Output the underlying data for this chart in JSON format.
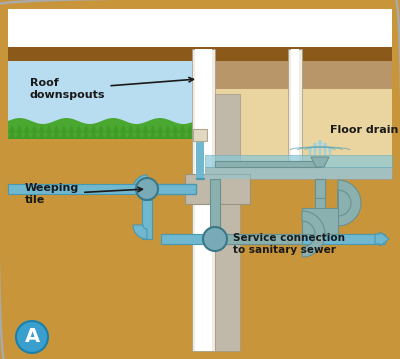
{
  "bg_outer": "#c8953a",
  "sky_color": "#b8ddf0",
  "grass_color": "#4aa830",
  "grass_dark": "#3a9020",
  "soil_color": "#c8953a",
  "soil_light": "#d4a855",
  "interior_color": "#ead5a0",
  "interior_dark": "#c8b888",
  "wall_white": "#f0ece0",
  "wall_gray": "#c0b8a8",
  "wall_border": "#a09888",
  "roof_brown": "#8b5a1a",
  "roof_tan": "#b8966a",
  "pipe_gray": "#8ab0b0",
  "pipe_gray_dark": "#6a9090",
  "pipe_gray_light": "#aacccc",
  "pipe_blue": "#70b8d0",
  "pipe_blue_dark": "#4898b0",
  "pipe_blue_light": "#90d0e8",
  "node_fill": "#78aab8",
  "node_border": "#3a7888",
  "water_fill": "#88c8d8",
  "water_border": "#60a8b8",
  "white": "#ffffff",
  "connector_cream": "#e0d8c0",
  "connector_border": "#b0a890",
  "footing_color": "#c0b8a8",
  "footing_border": "#9a9280",
  "label_roof": "Roof\ndownspouts",
  "label_weeping": "Weeping\ntile",
  "label_floor_drain": "Floor drain",
  "label_service": "Service connection\nto sanitary sewer",
  "label_A": "A",
  "badge_blue": "#3a9fcc",
  "badge_border": "#1a7faa",
  "text_color": "#1a1a1a",
  "border_color": "#aaaaaa"
}
